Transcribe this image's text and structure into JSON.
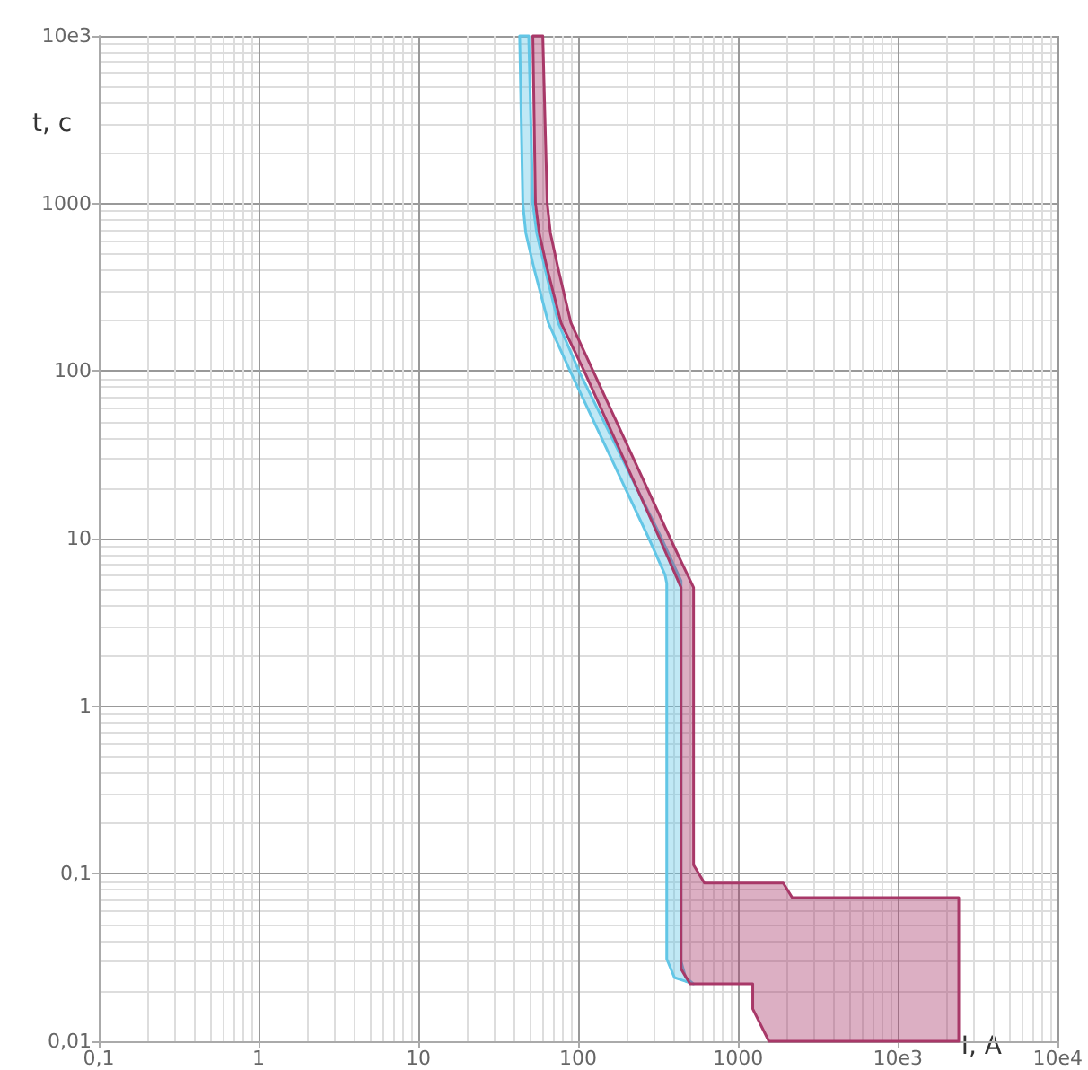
{
  "chart_data": {
    "type": "area",
    "xlabel": "I, A",
    "ylabel": "t, c",
    "log": "xy",
    "grid": true,
    "xlim": [
      0.1,
      100000
    ],
    "ylim": [
      0.01,
      10000
    ],
    "xticks": [
      {
        "value": 0.1,
        "label": "0,1"
      },
      1,
      10,
      100,
      1000,
      {
        "value": 10000,
        "label": "10e3"
      },
      {
        "value": 100000,
        "label": "10e4"
      }
    ],
    "yticks": [
      {
        "value": 0.01,
        "label": "0,01"
      },
      {
        "value": 0.1,
        "label": "0,1"
      },
      1,
      10,
      100,
      1000,
      {
        "value": 10000,
        "label": "10e3"
      }
    ],
    "series": [
      {
        "color": "#62c6e6",
        "x": [
          43,
          45,
          47,
          53,
          65,
          89,
          277,
          349,
          358,
          358,
          400,
          527,
          470,
          440,
          440,
          333,
          101,
          75,
          62,
          55,
          52,
          49
        ],
        "values": [
          10000,
          1000,
          665,
          406,
          194,
          100,
          10,
          6.1,
          5.4,
          0.031,
          0.024,
          0.022,
          0.024,
          0.03,
          5.6,
          10,
          100,
          194,
          406,
          665,
          1000,
          10000
        ]
      },
      {
        "color": "#a83868",
        "x": [
          60,
          64,
          67,
          75,
          90,
          124,
          377,
          527,
          527,
          616,
          1918,
          2183,
          24040,
          24040,
          1560,
          1236,
          1236,
          501,
          440,
          440,
          323,
          109,
          78,
          64,
          57,
          54,
          52
        ],
        "values": [
          10000,
          1000,
          665,
          406,
          194,
          100,
          10,
          5.1,
          0.113,
          0.088,
          0.088,
          0.072,
          0.072,
          0.01,
          0.01,
          0.0156,
          0.022,
          0.022,
          0.027,
          5.1,
          10,
          100,
          194,
          406,
          665,
          1000,
          10000
        ]
      }
    ]
  }
}
